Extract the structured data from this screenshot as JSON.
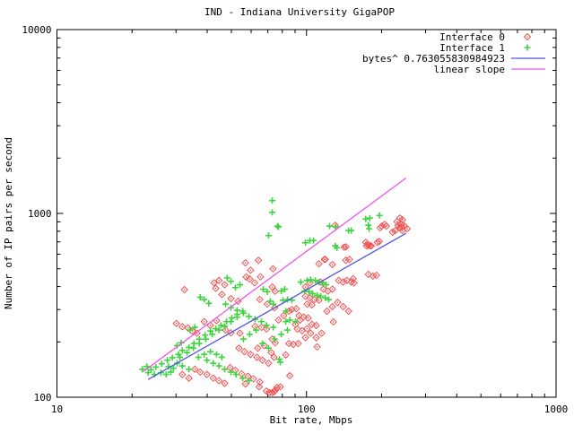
{
  "colors": {
    "background": "#ffffff",
    "axes": "#000000",
    "interface0": "#f25050",
    "interface1": "#3fd43f",
    "power_fit": "#5353e0",
    "linear_fit": "#ee55ee"
  },
  "chart_data": {
    "type": "scatter",
    "title": "IND - Indiana University GigaPOP",
    "xlabel": "Bit rate, Mbps",
    "ylabel": "Number of IP pairs per second",
    "xscale": "log",
    "yscale": "log",
    "xlim": [
      10,
      1000
    ],
    "ylim": [
      100,
      10000
    ],
    "grid": false,
    "x_major_ticks": [
      10,
      100,
      1000
    ],
    "x_tick_labels": [
      "10",
      "100",
      "1000"
    ],
    "y_major_ticks": [
      100,
      1000,
      10000
    ],
    "y_tick_labels": [
      "100",
      "1000",
      "10000"
    ],
    "legend_position": "top-right-inside",
    "legend": [
      {
        "label": "Interface 0",
        "color": "#f25050",
        "marker": "diamond"
      },
      {
        "label": "Interface 1",
        "color": "#3fd43f",
        "marker": "plus"
      },
      {
        "label": "bytes^ 0.763055830984923",
        "color": "#5353e0",
        "marker": "line"
      },
      {
        "label": "linear slope",
        "color": "#ee55ee",
        "marker": "line"
      }
    ],
    "series": [
      {
        "name": "Interface 0",
        "type": "points",
        "marker": "diamond",
        "color": "#f25050",
        "points": [
          [
            32.4,
            385
          ],
          [
            43.3,
            391
          ],
          [
            59.2,
            440
          ],
          [
            65.4,
            452
          ],
          [
            72.9,
            398
          ],
          [
            74.9,
            377
          ],
          [
            45.8,
            362
          ],
          [
            49.8,
            344
          ],
          [
            53.2,
            333
          ],
          [
            65,
            340
          ],
          [
            69.6,
            321
          ],
          [
            74.5,
            307
          ],
          [
            30.1,
            252
          ],
          [
            31.8,
            242
          ],
          [
            33.5,
            238
          ],
          [
            34.9,
            229
          ],
          [
            36.4,
            223
          ],
          [
            38.9,
            258
          ],
          [
            41.2,
            246
          ],
          [
            43.6,
            261
          ],
          [
            47.4,
            232
          ],
          [
            49.8,
            224
          ],
          [
            54.1,
            223
          ],
          [
            62.2,
            243
          ],
          [
            66,
            240
          ],
          [
            69.1,
            235
          ],
          [
            53.6,
            185
          ],
          [
            56.4,
            177
          ],
          [
            59.7,
            171
          ],
          [
            63.3,
            165
          ],
          [
            66.6,
            159
          ],
          [
            70.5,
            153
          ],
          [
            49.4,
            145
          ],
          [
            51.9,
            140
          ],
          [
            55,
            134
          ],
          [
            58.3,
            130
          ],
          [
            61.3,
            126
          ],
          [
            65,
            121
          ],
          [
            35.7,
            142
          ],
          [
            37.5,
            137
          ],
          [
            39.9,
            133
          ],
          [
            42.3,
            127
          ],
          [
            44.6,
            123
          ],
          [
            47,
            119
          ],
          [
            31.8,
            133
          ],
          [
            33.8,
            127
          ],
          [
            72.2,
            175
          ],
          [
            74.1,
            165
          ],
          [
            74.9,
            198
          ],
          [
            72.9,
            207
          ],
          [
            67.7,
            191
          ],
          [
            63.8,
            185
          ],
          [
            118,
            562
          ],
          [
            112.1,
            532
          ],
          [
            143.8,
            556
          ],
          [
            148.6,
            562
          ],
          [
            177,
            466
          ],
          [
            184.5,
            456
          ],
          [
            190.7,
            461
          ],
          [
            134.6,
            432
          ],
          [
            140.3,
            423
          ],
          [
            145,
            432
          ],
          [
            151.1,
            423
          ],
          [
            155,
            419
          ],
          [
            116.9,
            387
          ],
          [
            121.8,
            378
          ],
          [
            127,
            387
          ],
          [
            99,
            354
          ],
          [
            103.2,
            347
          ],
          [
            107.6,
            340
          ],
          [
            112.1,
            337
          ],
          [
            100.6,
            321
          ],
          [
            105,
            318
          ],
          [
            91.1,
            303
          ],
          [
            87.4,
            300
          ],
          [
            93.4,
            278
          ],
          [
            97.5,
            273
          ],
          [
            101.5,
            270
          ],
          [
            91.9,
            235
          ],
          [
            96,
            230
          ],
          [
            100.6,
            236
          ],
          [
            105,
            249
          ],
          [
            109.4,
            246
          ],
          [
            85,
            196
          ],
          [
            88.6,
            194
          ],
          [
            92.7,
            196
          ],
          [
            110.3,
            188
          ],
          [
            85.7,
            131
          ],
          [
            128.1,
            257
          ],
          [
            103.2,
            419
          ],
          [
            99,
            398
          ],
          [
            114,
            423
          ],
          [
            153.7,
            441
          ],
          [
            82.6,
            170
          ],
          [
            64.6,
            114
          ],
          [
            69.1,
            108
          ],
          [
            71.1,
            106
          ],
          [
            72.9,
            106
          ],
          [
            74.1,
            107
          ],
          [
            74.9,
            109
          ],
          [
            76.1,
            113
          ],
          [
            78.5,
            114
          ],
          [
            56.9,
            118
          ],
          [
            64.2,
            556
          ],
          [
            73.4,
            500
          ],
          [
            56.9,
            538
          ],
          [
            59.7,
            491
          ],
          [
            57.3,
            451
          ],
          [
            61.9,
            419
          ],
          [
            118.9,
            562
          ],
          [
            127,
            527
          ],
          [
            172.7,
            696
          ],
          [
            180.2,
            666
          ],
          [
            44.6,
            432
          ],
          [
            42.6,
            419
          ],
          [
            47,
            409
          ],
          [
            200.4,
            853
          ],
          [
            208.9,
            853
          ],
          [
            230.7,
            902
          ],
          [
            240.3,
            872
          ],
          [
            246.6,
            853
          ],
          [
            253.2,
            825
          ],
          [
            236.6,
            835
          ],
          [
            242.4,
            807
          ],
          [
            192.3,
            696
          ],
          [
            174.1,
            666
          ],
          [
            143.8,
            658
          ],
          [
            177,
            670
          ],
          [
            195.6,
            704
          ],
          [
            197.2,
            835
          ],
          [
            221.1,
            790
          ],
          [
            130.3,
            862
          ],
          [
            205.7,
            872
          ],
          [
            236.6,
            943
          ],
          [
            242.4,
            922
          ],
          [
            232.7,
            862
          ],
          [
            240.3,
            844
          ],
          [
            227,
            807
          ],
          [
            175.5,
            681
          ],
          [
            181.7,
            666
          ],
          [
            141.5,
            655
          ],
          [
            77.2,
            263
          ],
          [
            81.1,
            278
          ],
          [
            85,
            294
          ],
          [
            90.3,
            249
          ],
          [
            94.2,
            263
          ],
          [
            99,
            211
          ],
          [
            103.9,
            223
          ],
          [
            109.4,
            211
          ],
          [
            115,
            223
          ],
          [
            120.8,
            294
          ],
          [
            127,
            311
          ],
          [
            133.3,
            328
          ],
          [
            140.3,
            311
          ],
          [
            147.4,
            294
          ]
        ]
      },
      {
        "name": "Interface 1",
        "type": "points",
        "marker": "plus",
        "color": "#3fd43f",
        "points": [
          [
            37.5,
            350
          ],
          [
            38.9,
            340
          ],
          [
            40.6,
            324
          ],
          [
            47.4,
            321
          ],
          [
            49.8,
            307
          ],
          [
            52.7,
            297
          ],
          [
            55.9,
            287
          ],
          [
            58.8,
            275
          ],
          [
            62.2,
            266
          ],
          [
            66,
            258
          ],
          [
            69.1,
            246
          ],
          [
            73.6,
            240
          ],
          [
            35.7,
            240
          ],
          [
            34.1,
            232
          ],
          [
            31.5,
            198
          ],
          [
            30.3,
            191
          ],
          [
            28.6,
            137
          ],
          [
            27.4,
            133
          ],
          [
            26.1,
            136
          ],
          [
            24.6,
            133
          ],
          [
            23.2,
            136
          ],
          [
            30.3,
            153
          ],
          [
            31.8,
            148
          ],
          [
            33.8,
            142
          ],
          [
            39.9,
            159
          ],
          [
            42.3,
            153
          ],
          [
            44.6,
            148
          ],
          [
            47,
            142
          ],
          [
            49.8,
            137
          ],
          [
            52.2,
            133
          ],
          [
            55.5,
            127
          ],
          [
            58.8,
            123
          ],
          [
            38.9,
            171
          ],
          [
            36.9,
            165
          ],
          [
            41.2,
            177
          ],
          [
            43.6,
            171
          ],
          [
            45.8,
            165
          ],
          [
            71.6,
            333
          ],
          [
            73.6,
            321
          ],
          [
            67.1,
            387
          ],
          [
            69.6,
            375
          ],
          [
            51.9,
            395
          ],
          [
            54.1,
            409
          ],
          [
            49.8,
            427
          ],
          [
            48.1,
            446
          ],
          [
            94.9,
            423
          ],
          [
            100.6,
            432
          ],
          [
            103.9,
            436
          ],
          [
            108.5,
            432
          ],
          [
            112.1,
            423
          ],
          [
            115.9,
            419
          ],
          [
            119.8,
            409
          ],
          [
            98.2,
            378
          ],
          [
            102.3,
            375
          ],
          [
            105.8,
            366
          ],
          [
            110.3,
            358
          ],
          [
            114,
            354
          ],
          [
            118.9,
            347
          ],
          [
            122.8,
            340
          ],
          [
            81.8,
            387
          ],
          [
            79.2,
            378
          ],
          [
            83.9,
            340
          ],
          [
            80.5,
            337
          ],
          [
            87.4,
            337
          ],
          [
            82.6,
            294
          ],
          [
            85.7,
            263
          ],
          [
            82.6,
            258
          ],
          [
            90.3,
            258
          ],
          [
            78.5,
            155
          ],
          [
            77.8,
            161
          ],
          [
            72.9,
            1175
          ],
          [
            72.9,
            1013
          ],
          [
            76.5,
            853
          ],
          [
            70.5,
            758
          ],
          [
            99,
            693
          ],
          [
            103.2,
            712
          ],
          [
            106.7,
            712
          ],
          [
            123.8,
            853
          ],
          [
            131.2,
            844
          ],
          [
            147.4,
            807
          ],
          [
            151.1,
            807
          ],
          [
            172.7,
            932
          ],
          [
            179.4,
            943
          ],
          [
            177,
            862
          ],
          [
            178.2,
            825
          ],
          [
            196,
            975
          ],
          [
            130.3,
            666
          ],
          [
            132.4,
            650
          ],
          [
            77.2,
            844
          ],
          [
            28,
            147
          ],
          [
            29.3,
            144
          ],
          [
            31.1,
            165
          ],
          [
            33.2,
            175
          ],
          [
            35.2,
            185
          ],
          [
            37.2,
            196
          ],
          [
            39.5,
            207
          ],
          [
            41.9,
            220
          ],
          [
            44.6,
            232
          ],
          [
            47,
            243
          ],
          [
            49.8,
            258
          ],
          [
            52.7,
            273
          ],
          [
            55.9,
            207
          ],
          [
            59.2,
            220
          ],
          [
            62.8,
            232
          ],
          [
            66.6,
            196
          ],
          [
            70.5,
            185
          ],
          [
            74.5,
            207
          ],
          [
            79.2,
            220
          ],
          [
            83.9,
            232
          ],
          [
            22,
            142
          ],
          [
            22.9,
            147
          ],
          [
            23.8,
            141
          ],
          [
            24.9,
            146
          ],
          [
            26.3,
            152
          ],
          [
            27.7,
            159
          ],
          [
            29,
            164
          ],
          [
            30.7,
            171
          ],
          [
            31.8,
            180
          ],
          [
            33.8,
            187
          ],
          [
            35.4,
            196
          ],
          [
            37.2,
            207
          ],
          [
            39.2,
            218
          ],
          [
            41.2,
            229
          ],
          [
            43.3,
            236
          ],
          [
            45.4,
            246
          ],
          [
            47.8,
            258
          ],
          [
            50.2,
            270
          ],
          [
            52.7,
            282
          ],
          [
            55.5,
            294
          ]
        ]
      },
      {
        "name": "bytes^ 0.763055830984923",
        "type": "line",
        "color": "#5353e0",
        "points": [
          [
            23.2,
            125
          ],
          [
            251,
            780
          ]
        ]
      },
      {
        "name": "linear slope",
        "type": "line",
        "color": "#ee55ee",
        "points": [
          [
            22.2,
            138
          ],
          [
            251,
            1560
          ]
        ]
      }
    ]
  }
}
